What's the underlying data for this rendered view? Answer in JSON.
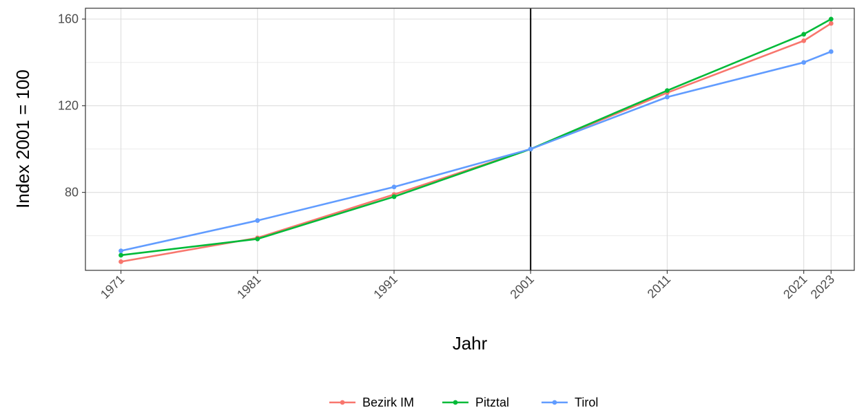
{
  "chart_data": {
    "type": "line",
    "title": "",
    "xlabel": "Jahr",
    "ylabel": "Index 2001 = 100",
    "x": [
      1971,
      1981,
      1991,
      2001,
      2011,
      2021,
      2023
    ],
    "x_tick_labels": [
      "1971",
      "1981",
      "1991",
      "2001",
      "2011",
      "2021",
      "2023"
    ],
    "xlim": [
      1968.4,
      2024.7
    ],
    "y_ticks": [
      80,
      120,
      160
    ],
    "ylim": [
      44,
      165
    ],
    "grid": true,
    "reference_line_x": 2001,
    "legend_position": "bottom",
    "series": [
      {
        "name": "Bezirk IM",
        "color": "#F8766D",
        "values": [
          48,
          59,
          79,
          100,
          126,
          150,
          158
        ]
      },
      {
        "name": "Pitztal",
        "color": "#00BA38",
        "values": [
          51,
          58.5,
          78,
          100,
          127,
          153,
          160
        ]
      },
      {
        "name": "Tirol",
        "color": "#619CFF",
        "values": [
          53,
          67,
          82.5,
          100,
          124,
          140,
          145
        ]
      }
    ]
  }
}
